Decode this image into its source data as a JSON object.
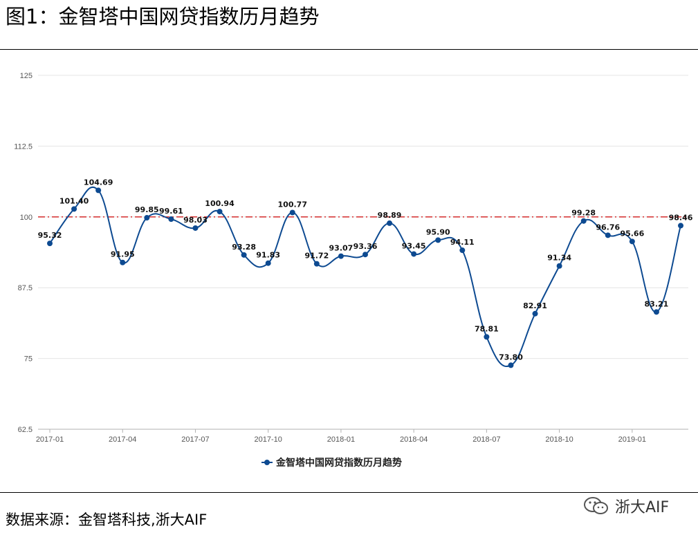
{
  "page": {
    "title": "图1：金智塔中国网贷指数历月趋势",
    "source": "数据来源：金智塔科技,浙大AIF",
    "watermark": "浙大AIF"
  },
  "colors": {
    "series": "#0d4a91",
    "reference": "#d11a1a",
    "grid": "#e4e4e4",
    "axis": "#b0b0b0"
  },
  "chart_data": {
    "type": "line",
    "title": "",
    "xlabel": "",
    "ylabel": "",
    "ylim": [
      62.5,
      125
    ],
    "yticks": [
      62.5,
      75,
      87.5,
      100,
      112.5,
      125
    ],
    "ytick_labels": [
      "62.5",
      "75",
      "87.5",
      "100",
      "112.5",
      "125"
    ],
    "xtick_labels": [
      "2017-01",
      "2017-04",
      "2017-07",
      "2017-10",
      "2018-01",
      "2018-04",
      "2018-07",
      "2018-10",
      "2019-01"
    ],
    "xtick_index": [
      0,
      3,
      6,
      9,
      12,
      15,
      18,
      21,
      24
    ],
    "grid": true,
    "legend_position": "bottom-center",
    "reference_line": {
      "y": 100,
      "style": "dash-dot"
    },
    "x": [
      "2017-01",
      "2017-02",
      "2017-03",
      "2017-04",
      "2017-05",
      "2017-06",
      "2017-07",
      "2017-08",
      "2017-09",
      "2017-10",
      "2017-11",
      "2017-12",
      "2018-01",
      "2018-02",
      "2018-03",
      "2018-04",
      "2018-05",
      "2018-06",
      "2018-07",
      "2018-08",
      "2018-09",
      "2018-10",
      "2018-11",
      "2018-12",
      "2019-01",
      "2019-02",
      "2019-03"
    ],
    "series": [
      {
        "name": "金智塔中国网贷指数历月趋势",
        "values": [
          95.32,
          101.4,
          104.69,
          91.95,
          99.85,
          99.61,
          98.03,
          100.94,
          93.28,
          91.83,
          100.77,
          91.72,
          93.07,
          93.36,
          98.89,
          93.45,
          95.9,
          94.11,
          78.81,
          73.8,
          82.91,
          91.34,
          99.28,
          96.76,
          95.66,
          83.21,
          98.46
        ],
        "labels": [
          "95.32",
          "101.40",
          "104.69",
          "91.95",
          "99.85",
          "99.61",
          "98.03",
          "100.94",
          "93.28",
          "91.83",
          "100.77",
          "91.72",
          "93.07",
          "93.36",
          "98.89",
          "93.45",
          "95.90",
          "94.11",
          "78.81",
          "73.80",
          "82.91",
          "91.34",
          "99.28",
          "96.76",
          "95.66",
          "83.21",
          "98.46"
        ]
      }
    ]
  }
}
